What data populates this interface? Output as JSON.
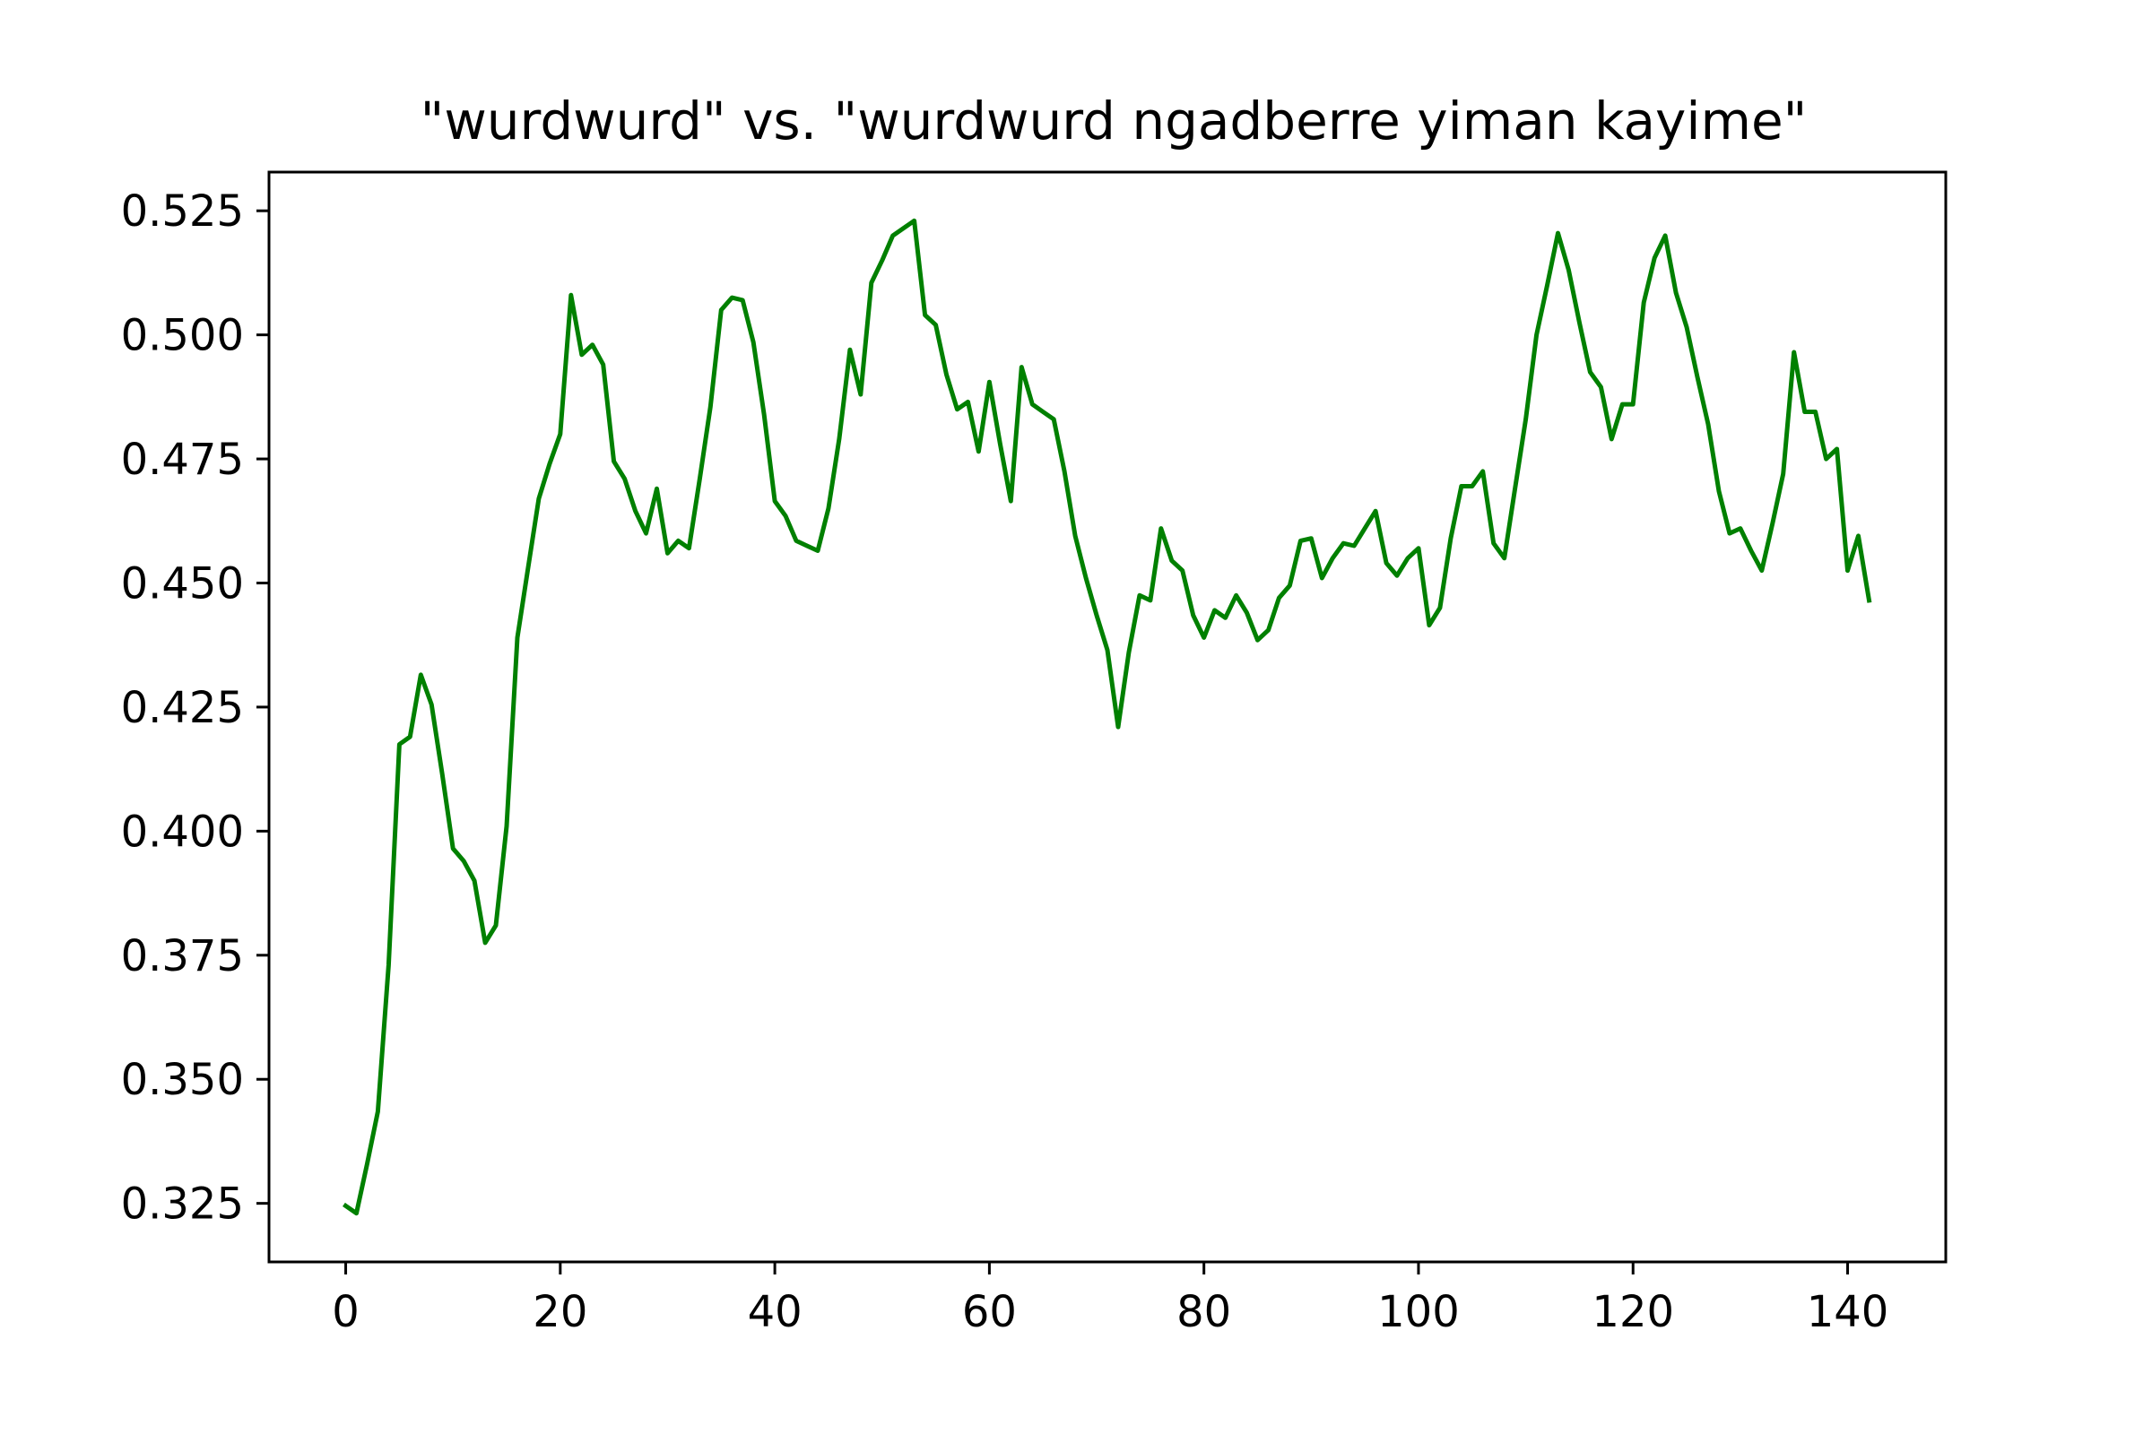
{
  "chart_data": {
    "type": "line",
    "title": "\"wurdwurd\" vs. \"wurdwurd ngadberre yiman kayime\"",
    "xlabel": "",
    "ylabel": "",
    "xlim": [
      -7.15,
      149.15
    ],
    "ylim": [
      0.3132,
      0.5328
    ],
    "grid": false,
    "xticks": [
      0,
      20,
      40,
      60,
      80,
      100,
      120,
      140
    ],
    "xtick_labels": [
      "0",
      "20",
      "40",
      "60",
      "80",
      "100",
      "120",
      "140"
    ],
    "yticks": [
      0.325,
      0.35,
      0.375,
      0.4,
      0.425,
      0.45,
      0.475,
      0.5,
      0.525
    ],
    "ytick_labels": [
      "0.325",
      "0.350",
      "0.375",
      "0.400",
      "0.425",
      "0.450",
      "0.475",
      "0.500",
      "0.525"
    ],
    "series": [
      {
        "color": "#008000",
        "x": [
          0,
          1,
          2,
          3,
          4,
          5,
          6,
          7,
          8,
          9,
          10,
          11,
          12,
          13,
          14,
          15,
          16,
          17,
          18,
          19,
          20,
          21,
          22,
          23,
          24,
          25,
          26,
          27,
          28,
          29,
          30,
          31,
          32,
          33,
          34,
          35,
          36,
          37,
          38,
          39,
          40,
          41,
          42,
          43,
          44,
          45,
          46,
          47,
          48,
          49,
          50,
          51,
          52,
          53,
          54,
          55,
          56,
          57,
          58,
          59,
          60,
          61,
          62,
          63,
          64,
          65,
          66,
          67,
          68,
          69,
          70,
          71,
          72,
          73,
          74,
          75,
          76,
          77,
          78,
          79,
          80,
          81,
          82,
          83,
          84,
          85,
          86,
          87,
          88,
          89,
          90,
          91,
          92,
          93,
          94,
          95,
          96,
          97,
          98,
          99,
          100,
          101,
          102,
          103,
          104,
          105,
          106,
          107,
          108,
          109,
          110,
          111,
          112,
          113,
          114,
          115,
          116,
          117,
          118,
          119,
          120,
          121,
          122,
          123,
          124,
          125,
          126,
          127,
          128,
          129,
          130,
          131,
          132,
          133,
          134,
          135,
          136,
          137,
          138,
          139,
          140,
          141,
          142
        ],
        "values": [
          0.3245,
          0.323,
          0.333,
          0.3435,
          0.373,
          0.4175,
          0.419,
          0.4315,
          0.4255,
          0.4115,
          0.3965,
          0.394,
          0.39,
          0.3775,
          0.381,
          0.401,
          0.439,
          0.453,
          0.467,
          0.474,
          0.48,
          0.508,
          0.496,
          0.498,
          0.494,
          0.4745,
          0.471,
          0.4645,
          0.46,
          0.469,
          0.456,
          0.4585,
          0.457,
          0.471,
          0.4855,
          0.505,
          0.5075,
          0.507,
          0.4985,
          0.484,
          0.4665,
          0.4635,
          0.4585,
          0.4575,
          0.4565,
          0.465,
          0.479,
          0.497,
          0.488,
          0.5105,
          0.515,
          0.52,
          0.5215,
          0.523,
          0.504,
          0.502,
          0.492,
          0.485,
          0.4865,
          0.4765,
          0.4905,
          0.478,
          0.4665,
          0.4935,
          0.486,
          0.4845,
          0.483,
          0.4725,
          0.4595,
          0.451,
          0.4435,
          0.4365,
          0.421,
          0.436,
          0.4475,
          0.4465,
          0.461,
          0.4545,
          0.4525,
          0.4435,
          0.439,
          0.4445,
          0.443,
          0.4475,
          0.444,
          0.4385,
          0.4405,
          0.447,
          0.4495,
          0.4585,
          0.459,
          0.451,
          0.455,
          0.458,
          0.4575,
          0.461,
          0.4645,
          0.454,
          0.4515,
          0.455,
          0.457,
          0.4415,
          0.445,
          0.459,
          0.4695,
          0.4695,
          0.4725,
          0.458,
          0.455,
          0.469,
          0.483,
          0.5,
          0.51,
          0.5205,
          0.513,
          0.5025,
          0.4925,
          0.4895,
          0.479,
          0.486,
          0.486,
          0.5065,
          0.5155,
          0.52,
          0.5085,
          0.5015,
          0.4915,
          0.482,
          0.4685,
          0.46,
          0.461,
          0.4565,
          0.4525,
          0.462,
          0.472,
          0.4965,
          0.4845,
          0.4845,
          0.475,
          0.477,
          0.4525,
          0.4595,
          0.4465
        ]
      }
    ]
  }
}
